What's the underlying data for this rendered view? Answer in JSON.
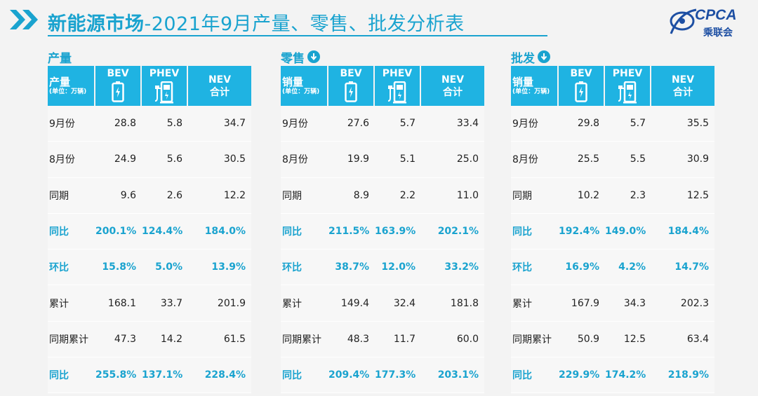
{
  "header": {
    "title_bold": "新能源市场",
    "title_rest": "-2021年9月产量、零售、批发分析表"
  },
  "logo": {
    "brand": "CPCA",
    "cn": "乘联会",
    "accent": "#1d4fa3"
  },
  "colors": {
    "accent": "#1aa3cf",
    "header_bg": "#1fb3e2"
  },
  "panels": [
    {
      "title": "产量",
      "has_icon": false,
      "col0_main": "产量",
      "col0_unit": "(单位：万辆)",
      "cols": [
        "BEV",
        "PHEV",
        "NEV",
        "合计"
      ],
      "rows": [
        {
          "label": "9月份",
          "bev": "28.8",
          "phev": "5.8",
          "nev": "34.7",
          "hl": false
        },
        {
          "label": "8月份",
          "bev": "24.9",
          "phev": "5.6",
          "nev": "30.5",
          "hl": false
        },
        {
          "label": "同期",
          "bev": "9.6",
          "phev": "2.6",
          "nev": "12.2",
          "hl": false
        },
        {
          "label": "同比",
          "bev": "200.1%",
          "phev": "124.4%",
          "nev": "184.0%",
          "hl": true
        },
        {
          "label": "环比",
          "bev": "15.8%",
          "phev": "5.0%",
          "nev": "13.9%",
          "hl": true
        },
        {
          "label": "累计",
          "bev": "168.1",
          "phev": "33.7",
          "nev": "201.9",
          "hl": false
        },
        {
          "label": "同期累计",
          "bev": "47.3",
          "phev": "14.2",
          "nev": "61.5",
          "hl": false
        },
        {
          "label": "同比",
          "bev": "255.8%",
          "phev": "137.1%",
          "nev": "228.4%",
          "hl": true
        }
      ]
    },
    {
      "title": "零售",
      "has_icon": true,
      "col0_main": "销量",
      "col0_unit": "(单位：万辆)",
      "cols": [
        "BEV",
        "PHEV",
        "NEV",
        "合计"
      ],
      "rows": [
        {
          "label": "9月份",
          "bev": "27.6",
          "phev": "5.7",
          "nev": "33.4",
          "hl": false
        },
        {
          "label": "8月份",
          "bev": "19.9",
          "phev": "5.1",
          "nev": "25.0",
          "hl": false
        },
        {
          "label": "同期",
          "bev": "8.9",
          "phev": "2.2",
          "nev": "11.0",
          "hl": false
        },
        {
          "label": "同比",
          "bev": "211.5%",
          "phev": "163.9%",
          "nev": "202.1%",
          "hl": true
        },
        {
          "label": "环比",
          "bev": "38.7%",
          "phev": "12.0%",
          "nev": "33.2%",
          "hl": true
        },
        {
          "label": "累计",
          "bev": "149.4",
          "phev": "32.4",
          "nev": "181.8",
          "hl": false
        },
        {
          "label": "同期累计",
          "bev": "48.3",
          "phev": "11.7",
          "nev": "60.0",
          "hl": false
        },
        {
          "label": "同比",
          "bev": "209.4%",
          "phev": "177.3%",
          "nev": "203.1%",
          "hl": true
        }
      ]
    },
    {
      "title": "批发",
      "has_icon": true,
      "col0_main": "销量",
      "col0_unit": "(单位：万辆)",
      "cols": [
        "BEV",
        "PHEV",
        "NEV",
        "合计"
      ],
      "rows": [
        {
          "label": "9月份",
          "bev": "29.8",
          "phev": "5.7",
          "nev": "35.5",
          "hl": false
        },
        {
          "label": "8月份",
          "bev": "25.5",
          "phev": "5.5",
          "nev": "30.9",
          "hl": false
        },
        {
          "label": "同期",
          "bev": "10.2",
          "phev": "2.3",
          "nev": "12.5",
          "hl": false
        },
        {
          "label": "同比",
          "bev": "192.4%",
          "phev": "149.0%",
          "nev": "184.4%",
          "hl": true
        },
        {
          "label": "环比",
          "bev": "16.9%",
          "phev": "4.2%",
          "nev": "14.7%",
          "hl": true
        },
        {
          "label": "累计",
          "bev": "167.9",
          "phev": "34.3",
          "nev": "202.3",
          "hl": false
        },
        {
          "label": "同期累计",
          "bev": "50.9",
          "phev": "12.5",
          "nev": "63.4",
          "hl": false
        },
        {
          "label": "同比",
          "bev": "229.9%",
          "phev": "174.2%",
          "nev": "218.9%",
          "hl": true
        }
      ]
    }
  ]
}
